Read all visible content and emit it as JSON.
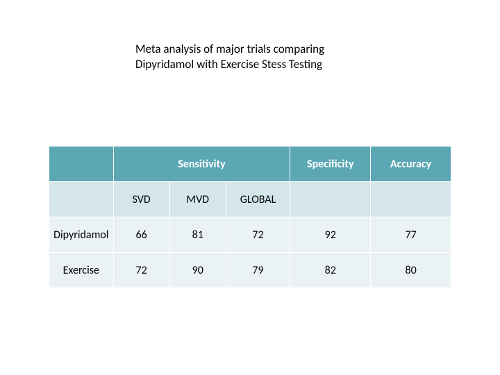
{
  "title_line1": "Meta analysis of major trials comparing",
  "title_line2": "Dipyridamol with Exercise Stess Testing",
  "table": {
    "type": "table",
    "header_bg": "#5ba7b4",
    "header_text_color": "#ffffff",
    "sub_bg": "#d4e6ea",
    "row_bg": "#eaf2f4",
    "border_color": "#ffffff",
    "font_family": "Calibri",
    "header_fontsize": 16,
    "cell_fontsize": 16,
    "top_headers": {
      "sensitivity": "Sensitivity",
      "specificity": "Specificity",
      "accuracy": "Accuracy"
    },
    "sub_headers": {
      "svd": "SVD",
      "mvd": "MVD",
      "global": "GLOBAL"
    },
    "rows": [
      {
        "label": "Dipyridamol",
        "svd": "66",
        "mvd": "81",
        "global": "72",
        "specificity": "92",
        "accuracy": "77"
      },
      {
        "label": "Exercise",
        "svd": "72",
        "mvd": "90",
        "global": "79",
        "specificity": "82",
        "accuracy": "80"
      }
    ]
  }
}
